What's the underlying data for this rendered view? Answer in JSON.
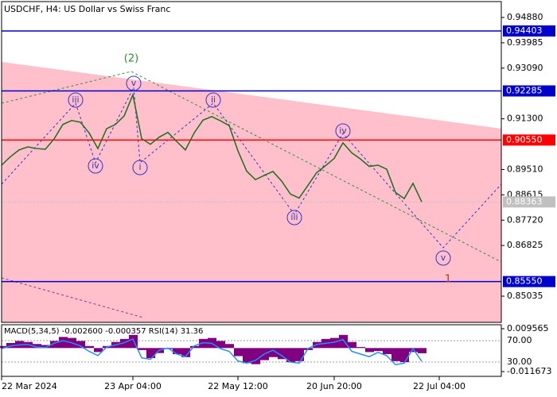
{
  "chart_data": [
    {
      "type": "line",
      "title": "USDCHF, H4:  US Dollar vs Swiss Franc",
      "categories": [
        "22 Mar 2024",
        null,
        null,
        null,
        null,
        null,
        null,
        null,
        null,
        null,
        null,
        null,
        null,
        null,
        null,
        "23 Apr 04:00",
        null,
        null,
        null,
        null,
        null,
        null,
        null,
        null,
        null,
        null,
        null,
        "22 May 12:00",
        null,
        null,
        null,
        null,
        null,
        null,
        null,
        null,
        null,
        null,
        "20 Jun 20:00",
        null,
        null,
        null,
        null,
        null,
        null,
        null,
        null,
        null,
        null,
        null,
        "22 Jul 04:00",
        null,
        null,
        null,
        null,
        null,
        null
      ],
      "values": [
        0.89663,
        0.8996,
        0.902,
        0.90308,
        0.9025,
        0.90224,
        0.9059,
        0.911,
        0.9124,
        0.9118,
        0.908,
        0.9025,
        0.9095,
        0.911,
        0.914,
        0.9215,
        0.906,
        0.904,
        0.9065,
        0.9082,
        0.905,
        0.902,
        0.908,
        0.9125,
        0.9138,
        0.9123,
        0.9106,
        0.9017,
        0.8945,
        0.8915,
        0.893,
        0.8944,
        0.891,
        0.8864,
        0.885,
        0.8895,
        0.894,
        0.8964,
        0.899,
        0.9045,
        0.901,
        0.8988,
        0.8962,
        0.89663,
        0.8952,
        0.887,
        0.8848,
        0.8902,
        0.88363,
        null,
        null,
        null,
        null,
        null,
        null,
        null,
        null
      ],
      "color": "#1b6e1b",
      "ylim": [
        0.84109,
        0.95441
      ],
      "yticks": [
        {
          "value": 0.9488,
          "label": "0.94880"
        },
        0.93985,
        {
          "value": 0.9309,
          "label": "0.93090"
        },
        {
          "value": 0.913,
          "label": "0.91300"
        },
        {
          "value": 0.8951,
          "label": "0.89510"
        },
        0.88615,
        {
          "value": 0.8772,
          "label": "0.87720"
        },
        0.86825,
        0.85035
      ],
      "levels": [
        {
          "value": 0.94403,
          "label": "0.94403",
          "color": "#0000cc"
        },
        {
          "value": 0.92285,
          "label": "0.92285",
          "color": "#0000cc"
        },
        {
          "value": 0.9055,
          "label": "0.90550",
          "color": "#ff0000"
        },
        {
          "value": 0.8555,
          "label": "0.85550",
          "color": "#0000cc"
        },
        {
          "value": 0.88363,
          "label": "0.88363",
          "color": "#c0c0c0"
        }
      ],
      "annotations": [
        {
          "text": "(2)"
        },
        {
          "text": "v"
        },
        {
          "text": "iii"
        },
        {
          "text": "iv"
        },
        {
          "text": "i"
        },
        {
          "text": "ii"
        },
        {
          "text": "iii"
        },
        {
          "text": "iv"
        },
        {
          "text": "v"
        },
        {
          "text": "1"
        }
      ]
    },
    {
      "type": "macd-rsi",
      "title": "MACD(5,34,5) -0.002600 -0.000357 RSI(14) 31.36",
      "series": [
        {
          "color": "#800080",
          "values": [
            0.001,
            0.0025,
            0.0035,
            0.003,
            0.002,
            0.0015,
            0.0035,
            0.0055,
            0.005,
            0.0035,
            0.001,
            -0.002,
            0.001,
            0.003,
            0.0045,
            0.0065,
            -0.001,
            -0.005,
            -0.0025,
            -0.0005,
            -0.003,
            -0.0045,
            0.001,
            0.0045,
            0.005,
            0.0035,
            0.002,
            -0.004,
            -0.0075,
            -0.008,
            -0.006,
            -0.0045,
            -0.0055,
            -0.007,
            -0.0065,
            -0.001,
            0.003,
            0.0045,
            0.005,
            0.0065,
            0.003,
            0.0005,
            -0.002,
            -0.0015,
            -0.003,
            -0.0065,
            -0.007,
            -0.002,
            -0.0026
          ]
        },
        {
          "color": "#1e90ff",
          "axis": "y2",
          "values": [
            55,
            60,
            62,
            63,
            58,
            57,
            65,
            70,
            66,
            60,
            50,
            42,
            58,
            62,
            66,
            73,
            38,
            35,
            52,
            56,
            45,
            40,
            60,
            66,
            65,
            55,
            50,
            32,
            28,
            33,
            45,
            52,
            42,
            30,
            28,
            55,
            63,
            65,
            67,
            72,
            50,
            45,
            40,
            48,
            42,
            25,
            28,
            55,
            31.36
          ]
        }
      ],
      "ylim": [
        -0.01403,
        0.01153
      ],
      "yticks": [
        0.009565,
        -0.011673
      ],
      "y2lim": [
        3.3,
        99.6
      ],
      "y2ticks": [
        {
          "value": 70,
          "label": "70.00"
        },
        {
          "value": 30,
          "label": "30.00"
        }
      ]
    }
  ]
}
